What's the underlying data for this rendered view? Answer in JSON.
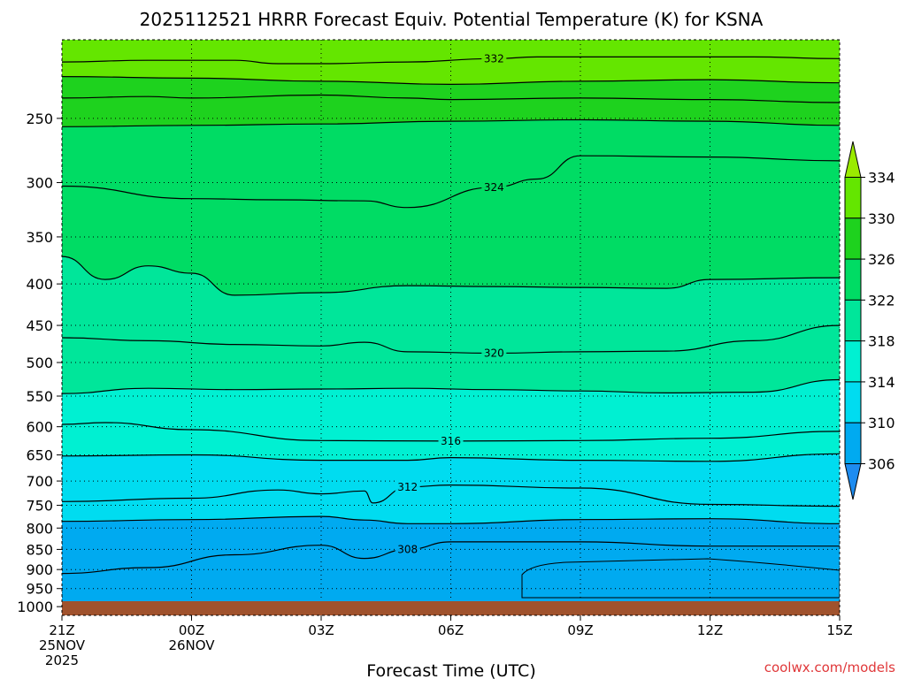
{
  "chart_data": {
    "type": "filled-contour",
    "title": "2025112521 HRRR Forecast Equiv. Potential Temperature (K) for KSNA",
    "xlabel": "Forecast Time (UTC)",
    "ylabel": "",
    "x_ticks": [
      {
        "hour": 0,
        "lines": [
          "21Z",
          "25NOV",
          "2025"
        ]
      },
      {
        "hour": 3,
        "lines": [
          "00Z",
          "26NOV"
        ]
      },
      {
        "hour": 6,
        "lines": [
          "03Z"
        ]
      },
      {
        "hour": 9,
        "lines": [
          "06Z"
        ]
      },
      {
        "hour": 12,
        "lines": [
          "09Z"
        ]
      },
      {
        "hour": 15,
        "lines": [
          "12Z"
        ]
      },
      {
        "hour": 18,
        "lines": [
          "15Z"
        ]
      }
    ],
    "xlim_hours": [
      0,
      18
    ],
    "y_ticks": [
      250,
      300,
      350,
      400,
      450,
      500,
      550,
      600,
      650,
      700,
      750,
      800,
      850,
      900,
      950,
      1000
    ],
    "ylim_hpa": [
      1025,
      200
    ],
    "y_scale": "log",
    "grid": "dotted",
    "colorbar": {
      "ticks": [
        306,
        310,
        314,
        318,
        322,
        326,
        330,
        334
      ],
      "levels": [
        302,
        306,
        310,
        314,
        318,
        322,
        326,
        330,
        334,
        338
      ],
      "colors": [
        "#1e8cf0",
        "#00aaf0",
        "#00dcf0",
        "#00f0d2",
        "#00e69a",
        "#00dc64",
        "#1ed21e",
        "#64e600",
        "#9aeb00"
      ],
      "extend": "both"
    },
    "terrain_color": "#a0522d",
    "contours": [
      {
        "value": 332,
        "label": "332",
        "points": [
          [
            0,
            213
          ],
          [
            2,
            212
          ],
          [
            4,
            212
          ],
          [
            5,
            214
          ],
          [
            6,
            214
          ],
          [
            8,
            213
          ],
          [
            10,
            211
          ],
          [
            11,
            210
          ],
          [
            12,
            210
          ],
          [
            14,
            210
          ],
          [
            16,
            210
          ],
          [
            18,
            211
          ]
        ]
      },
      {
        "value": 330,
        "label": "",
        "points": [
          [
            0,
            222
          ],
          [
            3,
            223
          ],
          [
            6,
            225
          ],
          [
            9,
            227
          ],
          [
            12,
            225
          ],
          [
            15,
            224
          ],
          [
            18,
            226
          ]
        ]
      },
      {
        "value": 328,
        "label": "",
        "points": [
          [
            0,
            236
          ],
          [
            2,
            235
          ],
          [
            3,
            236
          ],
          [
            6,
            234
          ],
          [
            8,
            236
          ],
          [
            9,
            237
          ],
          [
            12,
            236
          ],
          [
            15,
            237
          ],
          [
            18,
            239
          ]
        ]
      },
      {
        "value": 326,
        "label": "",
        "points": [
          [
            0,
            256
          ],
          [
            3,
            255
          ],
          [
            6,
            254
          ],
          [
            9,
            252
          ],
          [
            12,
            251
          ],
          [
            15,
            252
          ],
          [
            18,
            255
          ]
        ]
      },
      {
        "value": 324,
        "label": "324",
        "points": [
          [
            0,
            303
          ],
          [
            3,
            314
          ],
          [
            5,
            315
          ],
          [
            7,
            316
          ],
          [
            8,
            322
          ],
          [
            10,
            304
          ],
          [
            11,
            297
          ],
          [
            12,
            278
          ],
          [
            15,
            279
          ],
          [
            18,
            282
          ]
        ]
      },
      {
        "value": 322,
        "label": "",
        "points": [
          [
            0,
            370
          ],
          [
            1,
            395
          ],
          [
            2,
            380
          ],
          [
            3,
            388
          ],
          [
            4,
            413
          ],
          [
            6,
            410
          ],
          [
            8,
            402
          ],
          [
            10,
            403
          ],
          [
            12,
            404
          ],
          [
            14,
            405
          ],
          [
            15,
            395
          ],
          [
            18,
            393
          ]
        ]
      },
      {
        "value": 320,
        "label": "320",
        "points": [
          [
            0,
            466
          ],
          [
            2,
            470
          ],
          [
            4,
            475
          ],
          [
            6,
            477
          ],
          [
            7,
            472
          ],
          [
            8,
            485
          ],
          [
            10,
            487
          ],
          [
            12,
            485
          ],
          [
            14,
            484
          ],
          [
            16,
            470
          ],
          [
            18,
            450
          ]
        ]
      },
      {
        "value": 318,
        "label": "",
        "points": [
          [
            0,
            546
          ],
          [
            2,
            538
          ],
          [
            4,
            540
          ],
          [
            6,
            539
          ],
          [
            8,
            538
          ],
          [
            10,
            540
          ],
          [
            12,
            542
          ],
          [
            14,
            545
          ],
          [
            16,
            544
          ],
          [
            18,
            525
          ]
        ]
      },
      {
        "value": 316,
        "label": "316",
        "points": [
          [
            0,
            596
          ],
          [
            1,
            593
          ],
          [
            3,
            605
          ],
          [
            6,
            624
          ],
          [
            9,
            625
          ],
          [
            12,
            624
          ],
          [
            15,
            620
          ],
          [
            18,
            608
          ]
        ]
      },
      {
        "value": 314,
        "label": "",
        "points": [
          [
            0,
            652
          ],
          [
            3,
            650
          ],
          [
            6,
            660
          ],
          [
            8,
            660
          ],
          [
            9,
            655
          ],
          [
            12,
            660
          ],
          [
            15,
            662
          ],
          [
            18,
            648
          ]
        ]
      },
      {
        "value": 312,
        "label": "312",
        "points": [
          [
            0,
            742
          ],
          [
            3,
            735
          ],
          [
            5,
            718
          ],
          [
            6,
            726
          ],
          [
            7,
            720
          ],
          [
            7.2,
            745
          ],
          [
            8,
            712
          ],
          [
            9,
            708
          ],
          [
            12,
            714
          ],
          [
            15,
            748
          ],
          [
            18,
            752
          ]
        ]
      },
      {
        "value": 310,
        "label": "",
        "points": [
          [
            0,
            785
          ],
          [
            3,
            781
          ],
          [
            6,
            774
          ],
          [
            7,
            782
          ],
          [
            8,
            790
          ],
          [
            9,
            790
          ],
          [
            12,
            781
          ],
          [
            15,
            779
          ],
          [
            18,
            790
          ]
        ]
      },
      {
        "value": 308,
        "label": "308",
        "points": [
          [
            0,
            910
          ],
          [
            2,
            895
          ],
          [
            4,
            863
          ],
          [
            6,
            840
          ],
          [
            7,
            872
          ],
          [
            8,
            850
          ],
          [
            9,
            832
          ],
          [
            12,
            832
          ],
          [
            15,
            842
          ],
          [
            18,
            842
          ]
        ]
      }
    ]
  },
  "credit": "coolwx.com/models"
}
